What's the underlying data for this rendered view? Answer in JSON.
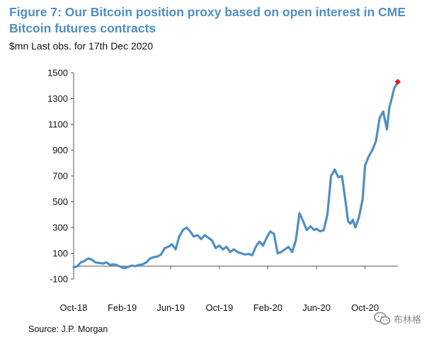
{
  "title": "Figure 7: Our Bitcoin position proxy based on open interest in CME Bitcoin futures contracts",
  "subtitle": "$mn Last obs. for 17th Dec 2020",
  "source": "Source: J.P. Morgan",
  "watermark": "布林格",
  "colors": {
    "title": "#4f8ec4",
    "line": "#4f8ec4",
    "last_marker": "#e8141b",
    "axis": "#555555"
  },
  "chart_data": {
    "type": "line",
    "title": "Figure 7: Our Bitcoin position proxy based on open interest in CME Bitcoin futures contracts",
    "subtitle": "$mn Last obs. for 17th Dec 2020",
    "xlabel": "",
    "ylabel": "$mn",
    "ylim": [
      -100,
      1500
    ],
    "yticks": [
      -100,
      100,
      300,
      500,
      700,
      900,
      1100,
      1300,
      1500
    ],
    "xlim": [
      0,
      26.7
    ],
    "xticks": [
      {
        "x": 0,
        "label": "Oct-18"
      },
      {
        "x": 4,
        "label": "Feb-19"
      },
      {
        "x": 8,
        "label": "Jun-19"
      },
      {
        "x": 12,
        "label": "Oct-19"
      },
      {
        "x": 16,
        "label": "Feb-20"
      },
      {
        "x": 20,
        "label": "Jun-20"
      },
      {
        "x": 24,
        "label": "Oct-20"
      }
    ],
    "series": [
      {
        "name": "Bitcoin position proxy ($mn)",
        "x": [
          0,
          0.3,
          0.6,
          0.9,
          1.2,
          1.5,
          1.8,
          2.1,
          2.4,
          2.7,
          3.0,
          3.3,
          3.6,
          3.9,
          4.2,
          4.5,
          4.8,
          5.1,
          5.4,
          5.7,
          6.0,
          6.3,
          6.6,
          6.9,
          7.2,
          7.5,
          7.8,
          8.1,
          8.4,
          8.7,
          9.0,
          9.3,
          9.6,
          9.9,
          10.2,
          10.5,
          10.8,
          11.1,
          11.4,
          11.7,
          12.0,
          12.3,
          12.6,
          12.9,
          13.2,
          13.5,
          13.8,
          14.1,
          14.4,
          14.7,
          15.0,
          15.3,
          15.6,
          15.9,
          16.2,
          16.5,
          16.8,
          17.1,
          17.4,
          17.7,
          18.0,
          18.3,
          18.6,
          18.9,
          19.2,
          19.5,
          19.8,
          20.0,
          20.3,
          20.6,
          20.9,
          21.2,
          21.5,
          21.8,
          22.1,
          22.4,
          22.6,
          22.8,
          23.0,
          23.2,
          23.5,
          23.8,
          24.0,
          24.3,
          24.6,
          24.9,
          25.2,
          25.5,
          25.8,
          26.0,
          26.2,
          26.4,
          26.7
        ],
        "values": [
          -10,
          0,
          30,
          40,
          60,
          50,
          30,
          25,
          20,
          30,
          10,
          15,
          5,
          -5,
          -15,
          -5,
          5,
          0,
          10,
          15,
          30,
          60,
          70,
          75,
          90,
          140,
          150,
          170,
          130,
          230,
          280,
          300,
          270,
          230,
          240,
          210,
          240,
          220,
          200,
          140,
          160,
          130,
          150,
          110,
          130,
          110,
          100,
          90,
          95,
          85,
          150,
          190,
          160,
          220,
          270,
          250,
          100,
          110,
          130,
          150,
          110,
          200,
          410,
          350,
          280,
          310,
          280,
          290,
          270,
          280,
          400,
          700,
          750,
          690,
          700,
          500,
          350,
          330,
          360,
          300,
          380,
          520,
          780,
          850,
          900,
          970,
          1150,
          1200,
          1060,
          1230,
          1300,
          1380,
          1430
        ]
      }
    ],
    "last_observation": {
      "x": 26.7,
      "value": 1430,
      "label": "17th Dec 2020"
    }
  }
}
